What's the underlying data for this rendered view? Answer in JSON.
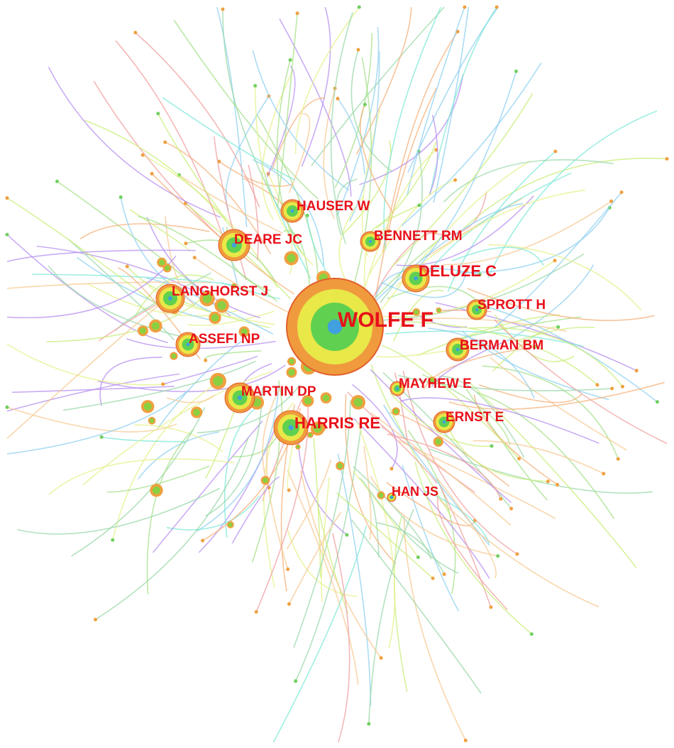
{
  "nodes": [
    {
      "label": "WOLFE F"
    },
    {
      "label": "HAUSER W"
    },
    {
      "label": "DEARE JC"
    },
    {
      "label": "BENNETT RM"
    },
    {
      "label": "DELUZE C"
    },
    {
      "label": "LANGHORST J"
    },
    {
      "label": "SPROTT H"
    },
    {
      "label": "ASSEFI NP"
    },
    {
      "label": "BERMAN BM"
    },
    {
      "label": "MAYHEW E"
    },
    {
      "label": "MARTIN DP"
    },
    {
      "label": "HARRIS RE"
    },
    {
      "label": "ERNST E"
    },
    {
      "label": "HAN JS"
    }
  ]
}
